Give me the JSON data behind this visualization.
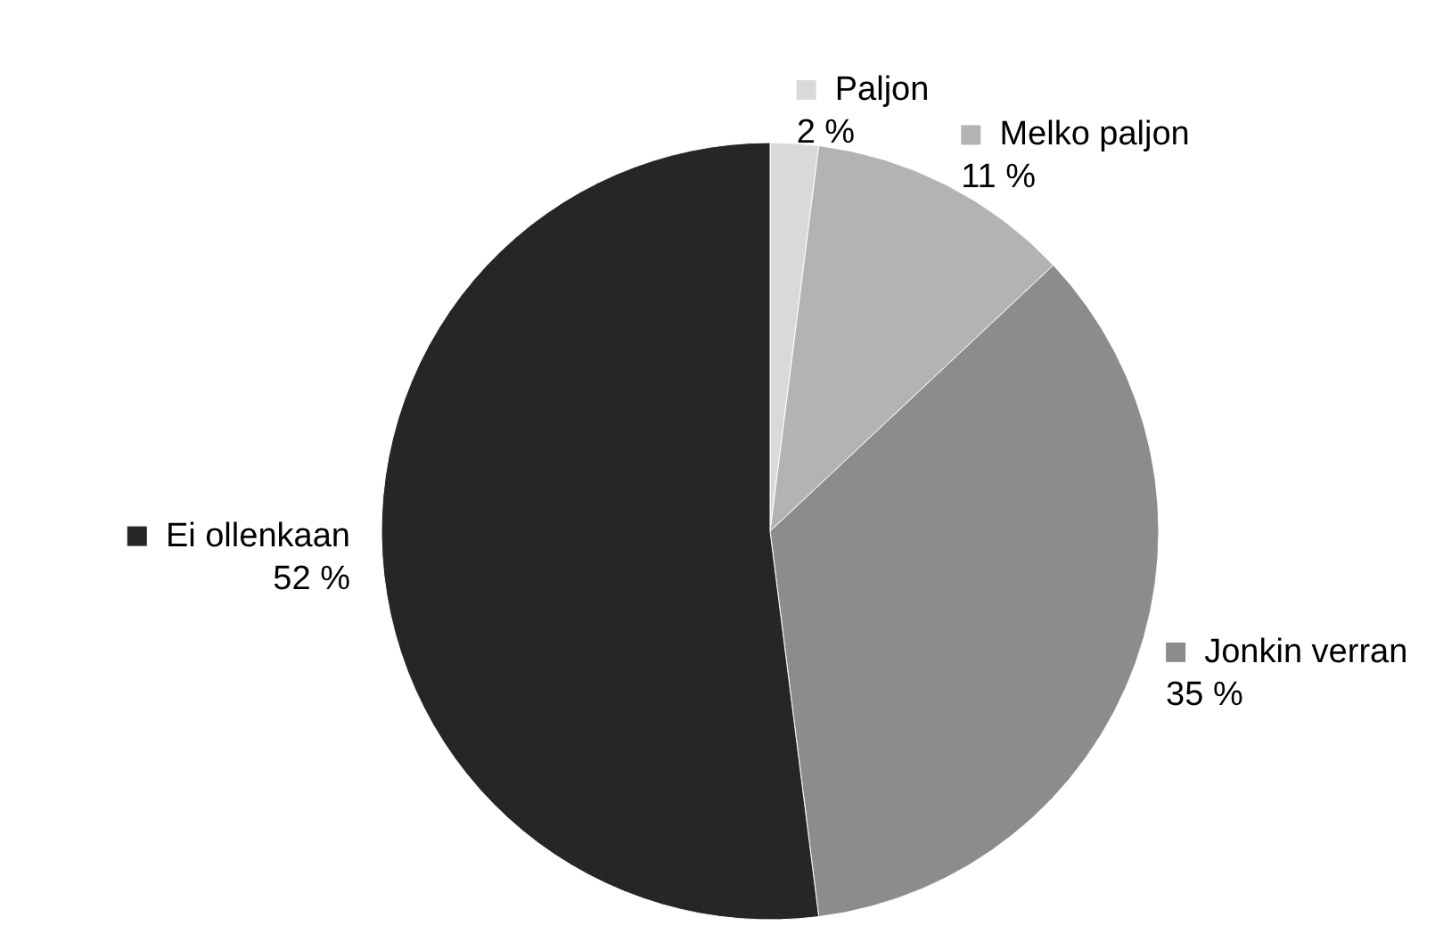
{
  "chart_data": {
    "type": "pie",
    "categories": [
      "Paljon",
      "Melko paljon",
      "Jonkin verran",
      "Ei ollenkaan"
    ],
    "values": [
      2,
      11,
      35,
      52
    ],
    "value_labels": [
      "2 %",
      "11 %",
      "35 %",
      "52 %"
    ],
    "colors": [
      "#d9d9d9",
      "#b3b3b3",
      "#8c8c8c",
      "#262626"
    ],
    "legend": "right"
  }
}
